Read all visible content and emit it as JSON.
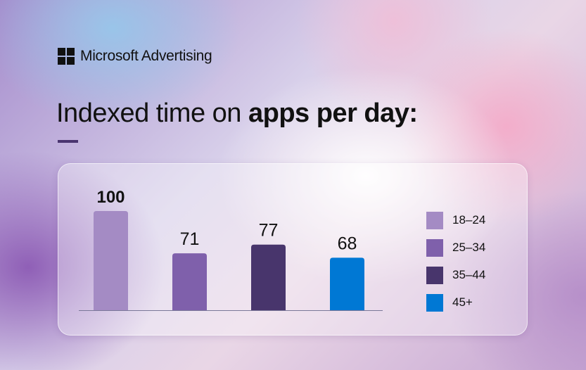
{
  "brand": {
    "name": "Microsoft Advertising"
  },
  "title": {
    "regular": "Indexed time on ",
    "bold": "apps per day:"
  },
  "chart_data": {
    "type": "bar",
    "title": "Indexed time on apps per day:",
    "categories": [
      "18–24",
      "25–34",
      "35–44",
      "45+"
    ],
    "values": [
      100,
      71,
      77,
      68
    ],
    "value_labels": [
      "100",
      "71",
      "77",
      "68"
    ],
    "colors": [
      "#a48bc4",
      "#7f60ab",
      "#48356c",
      "#0078d4"
    ],
    "ylim": [
      32,
      100
    ],
    "xlabel": "",
    "ylabel": "",
    "grid": false,
    "legend": "right"
  }
}
